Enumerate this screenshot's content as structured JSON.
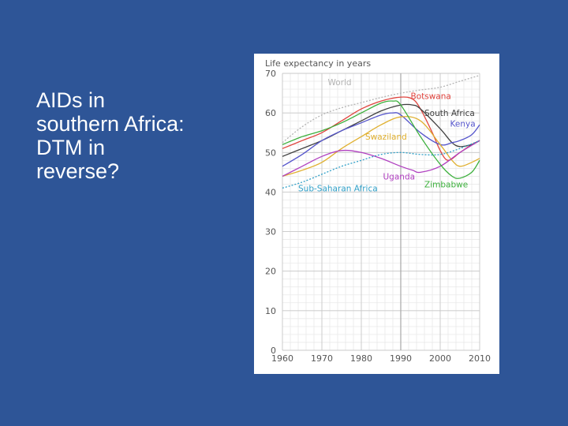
{
  "slide": {
    "title_lines": [
      "AIDs in",
      "southern Africa:",
      "DTM in",
      "reverse?"
    ]
  },
  "chart_data": {
    "type": "line",
    "title": "Life expectancy in years",
    "xlabel": "",
    "ylabel": "",
    "xlim": [
      1960,
      2010
    ],
    "ylim": [
      0,
      70
    ],
    "x_ticks": [
      1960,
      1970,
      1980,
      1990,
      2000,
      2010
    ],
    "y_ticks": [
      0,
      10,
      20,
      30,
      40,
      50,
      60,
      70
    ],
    "grid": true,
    "series": [
      {
        "name": "World",
        "color": "#b4b4b4",
        "dashed": true,
        "x": [
          1960,
          1965,
          1970,
          1975,
          1980,
          1985,
          1990,
          1995,
          2000,
          2005,
          2010
        ],
        "y": [
          52.5,
          56.5,
          59.5,
          61.3,
          62.6,
          63.9,
          65.0,
          65.8,
          66.5,
          68.0,
          69.5
        ]
      },
      {
        "name": "Botswana",
        "color": "#e0443e",
        "x": [
          1960,
          1965,
          1970,
          1975,
          1980,
          1985,
          1990,
          1993,
          1995,
          1998,
          2000,
          2002,
          2005,
          2008,
          2010
        ],
        "y": [
          51,
          53,
          55,
          58,
          61,
          63,
          64,
          63.5,
          61,
          55,
          50.5,
          48,
          50,
          52,
          53
        ]
      },
      {
        "name": "South Africa",
        "color": "#404040",
        "x": [
          1960,
          1965,
          1970,
          1975,
          1980,
          1985,
          1990,
          1993,
          1995,
          2000,
          2003,
          2005,
          2008,
          2010
        ],
        "y": [
          49,
          51,
          53,
          55.5,
          58,
          60.5,
          62,
          62,
          61,
          56,
          52.5,
          51.5,
          52,
          53
        ]
      },
      {
        "name": "Kenya",
        "color": "#5555cc",
        "x": [
          1960,
          1965,
          1970,
          1975,
          1980,
          1985,
          1988,
          1990,
          1995,
          2000,
          2003,
          2005,
          2008,
          2010
        ],
        "y": [
          46.5,
          49.5,
          53,
          55.5,
          57.5,
          59.5,
          60,
          59.5,
          55,
          52,
          52.5,
          53,
          54.5,
          57
        ]
      },
      {
        "name": "Swaziland",
        "color": "#e0b030",
        "x": [
          1960,
          1965,
          1970,
          1975,
          1980,
          1985,
          1990,
          1995,
          2000,
          2003,
          2005,
          2008,
          2010
        ],
        "y": [
          44,
          45.5,
          47.5,
          51,
          54,
          57,
          59,
          58,
          52,
          48,
          46.5,
          47.5,
          48.5
        ]
      },
      {
        "name": "Uganda",
        "color": "#b040c0",
        "x": [
          1960,
          1965,
          1970,
          1975,
          1980,
          1985,
          1990,
          1993,
          1995,
          2000,
          2005,
          2010
        ],
        "y": [
          44,
          46.5,
          49,
          50.5,
          50,
          48.5,
          46.5,
          45.5,
          45,
          46.5,
          50,
          53
        ]
      },
      {
        "name": "Zimbabwe",
        "color": "#3cb03c",
        "x": [
          1960,
          1965,
          1970,
          1975,
          1980,
          1985,
          1988,
          1990,
          1995,
          2000,
          2003,
          2005,
          2008,
          2010
        ],
        "y": [
          52,
          54,
          55.5,
          57.5,
          60,
          62.5,
          63,
          62,
          54,
          47,
          44,
          43.5,
          45,
          48
        ]
      },
      {
        "name": "Sub-Saharan Africa",
        "color": "#30a0c8",
        "dashed": true,
        "x": [
          1960,
          1965,
          1970,
          1975,
          1980,
          1985,
          1990,
          1995,
          2000,
          2005,
          2010
        ],
        "y": [
          41,
          42.5,
          44.5,
          46.5,
          48,
          49.5,
          50,
          49.5,
          49.5,
          51,
          53
        ]
      }
    ],
    "labels": [
      {
        "text": "World",
        "series": "World",
        "at": [
          1971.5,
          67
        ]
      },
      {
        "text": "Botswana",
        "series": "Botswana",
        "at": [
          1992.5,
          63.5
        ]
      },
      {
        "text": "South Africa",
        "series": "South Africa",
        "at": [
          1996,
          59.2
        ]
      },
      {
        "text": "Kenya",
        "series": "Kenya",
        "at": [
          2002.5,
          56.5
        ]
      },
      {
        "text": "Swaziland",
        "series": "Swaziland",
        "at": [
          1981,
          53.2
        ]
      },
      {
        "text": "Uganda",
        "series": "Uganda",
        "at": [
          1985.5,
          43.2
        ]
      },
      {
        "text": "Zimbabwe",
        "series": "Zimbabwe",
        "at": [
          1996,
          41.2
        ]
      },
      {
        "text": "Sub-Saharan Africa",
        "series": "Sub-Saharan Africa",
        "at": [
          1964,
          40.2
        ]
      }
    ]
  }
}
